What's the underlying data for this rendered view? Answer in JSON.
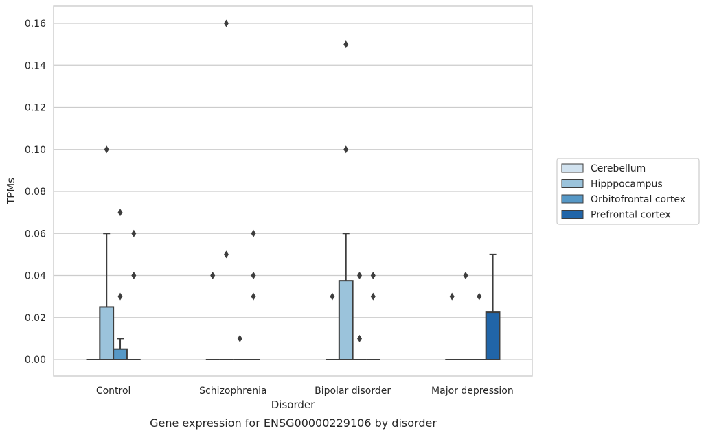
{
  "chart_data": {
    "type": "box",
    "caption": "Gene expression for ENSG00000229106 by disorder",
    "xlabel": "Disorder",
    "ylabel": "TPMs",
    "ylim": [
      -0.008,
      0.168
    ],
    "yticks": [
      0.0,
      0.02,
      0.04,
      0.06,
      0.08,
      0.1,
      0.12,
      0.14,
      0.16
    ],
    "ytick_labels": [
      "0.00",
      "0.02",
      "0.04",
      "0.06",
      "0.08",
      "0.10",
      "0.12",
      "0.14",
      "0.16"
    ],
    "grid": true,
    "legend_position": "right",
    "categories": [
      "Control",
      "Schizophrenia",
      "Bipolar disorder",
      "Major depression"
    ],
    "series": [
      {
        "name": "Cerebellum",
        "color": "#d1e2ef",
        "boxes": [
          {
            "q1": 0,
            "median": 0,
            "q3": 0,
            "whislo": 0,
            "whishi": 0,
            "fliers": []
          },
          {
            "q1": 0,
            "median": 0,
            "q3": 0,
            "whislo": 0,
            "whishi": 0,
            "fliers": [
              0.04
            ]
          },
          {
            "q1": 0,
            "median": 0,
            "q3": 0,
            "whislo": 0,
            "whishi": 0,
            "fliers": [
              0.03
            ]
          },
          {
            "q1": 0,
            "median": 0,
            "q3": 0,
            "whislo": 0,
            "whishi": 0,
            "fliers": [
              0.03
            ]
          }
        ]
      },
      {
        "name": "Hipppocampus",
        "color": "#9bc3db",
        "boxes": [
          {
            "q1": 0,
            "median": 0,
            "q3": 0.025,
            "whislo": 0,
            "whishi": 0.06,
            "fliers": [
              0.1
            ]
          },
          {
            "q1": 0,
            "median": 0,
            "q3": 0,
            "whislo": 0,
            "whishi": 0,
            "fliers": [
              0.16,
              0.05
            ]
          },
          {
            "q1": 0,
            "median": 0,
            "q3": 0.0375,
            "whislo": 0,
            "whishi": 0.06,
            "fliers": [
              0.15,
              0.1
            ]
          },
          {
            "q1": 0,
            "median": 0,
            "q3": 0,
            "whislo": 0,
            "whishi": 0,
            "fliers": [
              0.04
            ]
          }
        ]
      },
      {
        "name": "Orbitofrontal cortex",
        "color": "#5698c6",
        "boxes": [
          {
            "q1": 0,
            "median": 0,
            "q3": 0.005,
            "whislo": 0,
            "whishi": 0.01,
            "fliers": [
              0.07,
              0.03
            ]
          },
          {
            "q1": 0,
            "median": 0,
            "q3": 0,
            "whislo": 0,
            "whishi": 0,
            "fliers": [
              0.01
            ]
          },
          {
            "q1": 0,
            "median": 0,
            "q3": 0,
            "whislo": 0,
            "whishi": 0,
            "fliers": [
              0.04,
              0.01
            ]
          },
          {
            "q1": 0,
            "median": 0,
            "q3": 0,
            "whislo": 0,
            "whishi": 0,
            "fliers": [
              0.03
            ]
          }
        ]
      },
      {
        "name": "Prefrontal cortex",
        "color": "#2165a8",
        "boxes": [
          {
            "q1": 0,
            "median": 0,
            "q3": 0,
            "whislo": 0,
            "whishi": 0,
            "fliers": [
              0.06,
              0.04
            ]
          },
          {
            "q1": 0,
            "median": 0,
            "q3": 0,
            "whislo": 0,
            "whishi": 0,
            "fliers": [
              0.06,
              0.04,
              0.03
            ]
          },
          {
            "q1": 0,
            "median": 0,
            "q3": 0,
            "whislo": 0,
            "whishi": 0,
            "fliers": [
              0.04,
              0.03
            ]
          },
          {
            "q1": 0,
            "median": 0,
            "q3": 0.0225,
            "whislo": 0,
            "whishi": 0.05,
            "fliers": []
          }
        ]
      }
    ]
  }
}
